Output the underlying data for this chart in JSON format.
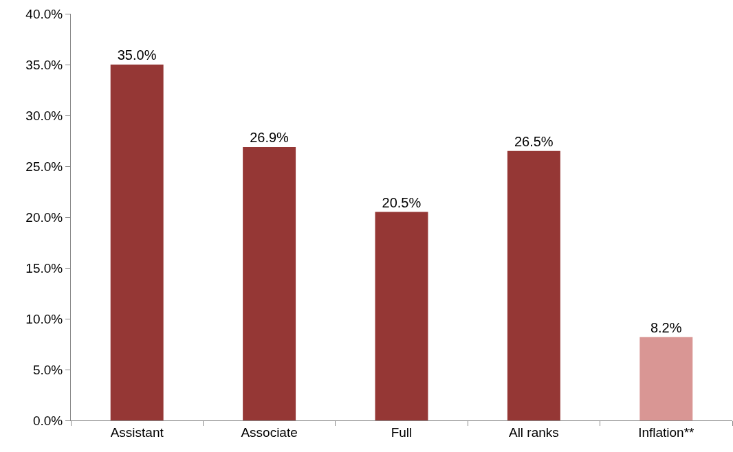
{
  "chart_data": {
    "type": "bar",
    "categories": [
      "Assistant",
      "Associate",
      "Full",
      "All ranks",
      "Inflation**"
    ],
    "values": [
      35.0,
      26.9,
      20.5,
      26.5,
      8.2
    ],
    "colors": [
      "#953735",
      "#953735",
      "#953735",
      "#953735",
      "#d99694"
    ],
    "value_labels": [
      "35.0%",
      "26.9%",
      "20.5%",
      "26.5%",
      "8.2%"
    ],
    "ylim": [
      0,
      40
    ],
    "yticks": [
      {
        "value": 0,
        "label": "0.0%"
      },
      {
        "value": 5,
        "label": "5.0%"
      },
      {
        "value": 10,
        "label": "10.0%"
      },
      {
        "value": 15,
        "label": "15.0%"
      },
      {
        "value": 20,
        "label": "20.0%"
      },
      {
        "value": 25,
        "label": "25.0%"
      },
      {
        "value": 30,
        "label": "30.0%"
      },
      {
        "value": 35,
        "label": "35.0%"
      },
      {
        "value": 40,
        "label": "40.0%"
      }
    ],
    "grid": false
  }
}
